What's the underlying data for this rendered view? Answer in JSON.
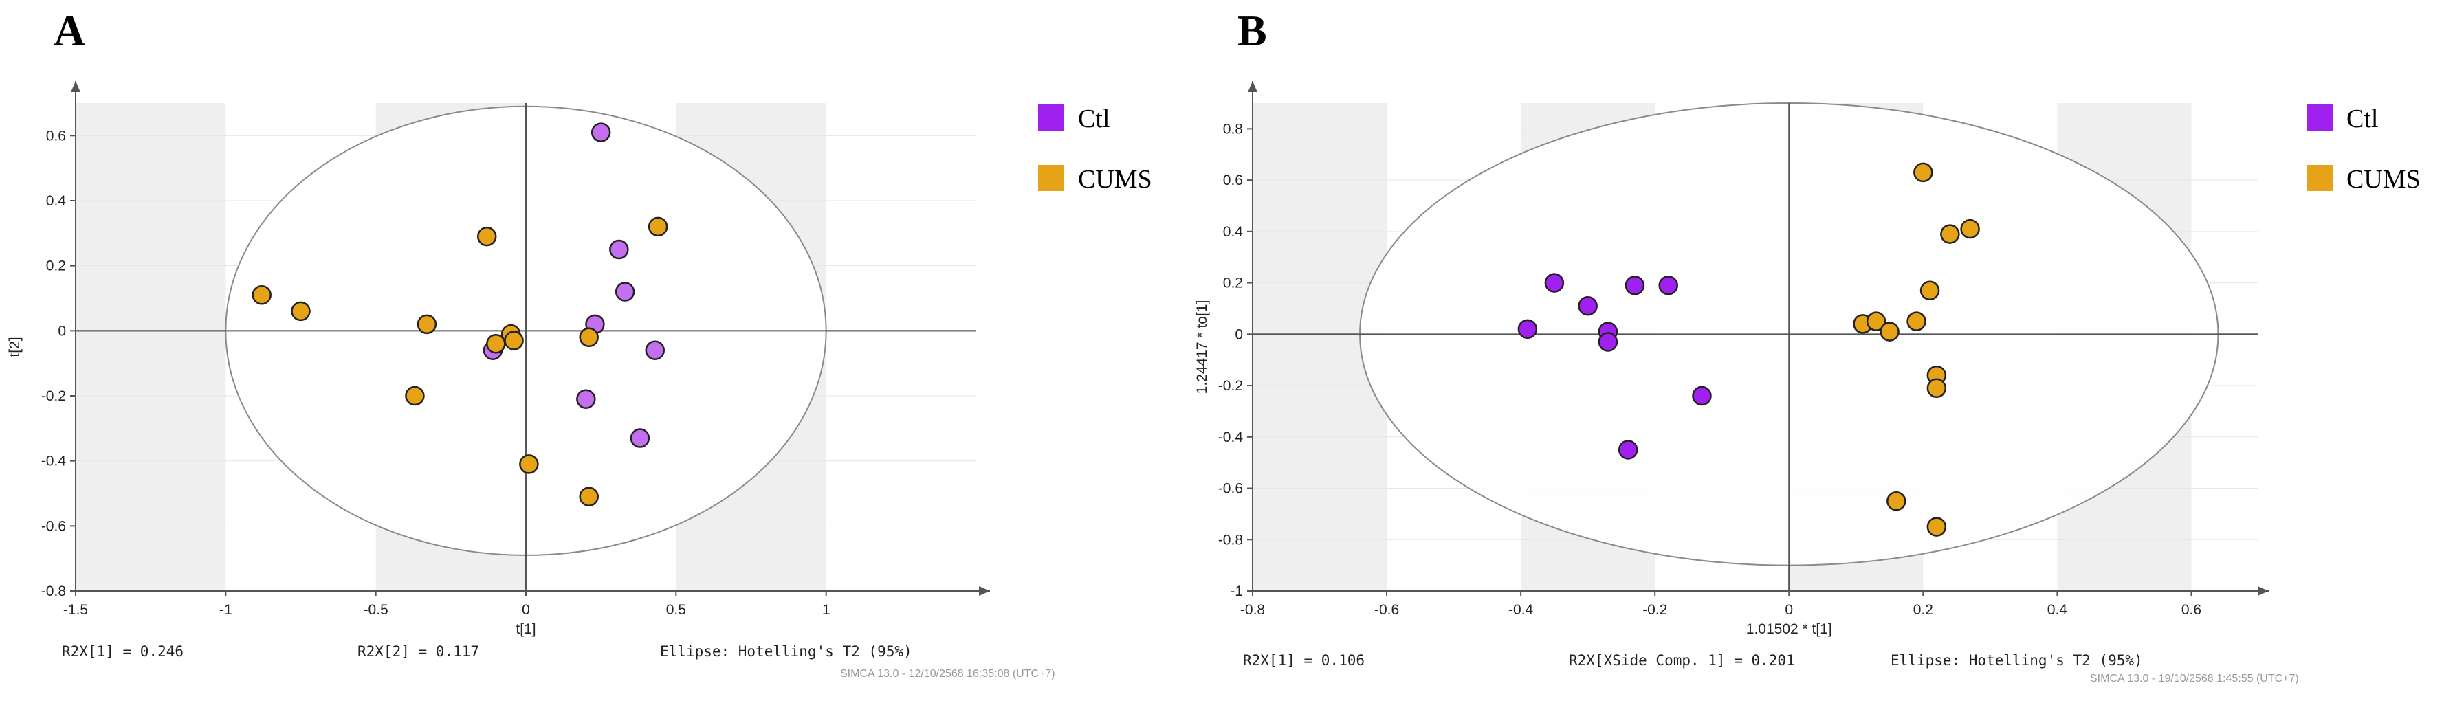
{
  "panels": [
    {
      "letter": "A"
    },
    {
      "letter": "B"
    }
  ],
  "colors": {
    "ctl": "#a020f0",
    "cums": "#e6a317",
    "ctl_light": "#c46ef0"
  },
  "chart_data": [
    {
      "type": "scatter",
      "title": "",
      "xlabel": "t[1]",
      "ylabel": "t[2]",
      "xlim": [
        -1.5,
        1.5
      ],
      "ylim": [
        -0.8,
        0.7
      ],
      "xticks": [
        -1.5,
        -1,
        -0.5,
        0,
        0.5,
        1
      ],
      "yticks": [
        -0.8,
        -0.6,
        -0.4,
        -0.2,
        0,
        0.2,
        0.4,
        0.6
      ],
      "grid": "vertical bands",
      "legend_position": "right",
      "ellipse": {
        "label": "Ellipse: Hotelling's T2 (95%)",
        "rx": 1.0,
        "ry": 0.69
      },
      "series": [
        {
          "name": "Ctl",
          "points": [
            [
              0.25,
              0.61
            ],
            [
              0.31,
              0.25
            ],
            [
              0.33,
              0.12
            ],
            [
              0.23,
              0.02
            ],
            [
              0.43,
              -0.06
            ],
            [
              0.2,
              -0.21
            ],
            [
              0.38,
              -0.33
            ],
            [
              -0.11,
              -0.06
            ]
          ]
        },
        {
          "name": "CUMS",
          "points": [
            [
              -0.88,
              0.11
            ],
            [
              -0.75,
              0.06
            ],
            [
              -0.13,
              0.29
            ],
            [
              -0.33,
              0.02
            ],
            [
              -0.05,
              -0.01
            ],
            [
              -0.04,
              -0.03
            ],
            [
              -0.1,
              -0.04
            ],
            [
              0.21,
              -0.02
            ],
            [
              0.44,
              0.32
            ],
            [
              -0.37,
              -0.2
            ],
            [
              0.01,
              -0.41
            ],
            [
              0.21,
              -0.51
            ]
          ]
        }
      ],
      "footer": {
        "r2x1": "R2X[1] = 0.246",
        "r2x2": "R2X[2] = 0.117",
        "ellipse": "Ellipse: Hotelling's T2 (95%)",
        "stamp": "SIMCA 13.0 - 12/10/2568 16:35:08 (UTC+7)"
      }
    },
    {
      "type": "scatter",
      "title": "",
      "xlabel": "1.01502 * t[1]",
      "ylabel": "1.24417 * to[1]",
      "xlim": [
        -0.8,
        0.7
      ],
      "ylim": [
        -1.0,
        0.9
      ],
      "xticks": [
        -0.8,
        -0.6,
        -0.4,
        -0.2,
        0,
        0.2,
        0.4,
        0.6
      ],
      "yticks": [
        -1,
        -0.8,
        -0.6,
        -0.4,
        -0.2,
        0,
        0.2,
        0.4,
        0.6,
        0.8
      ],
      "grid": "vertical bands",
      "legend_position": "right",
      "ellipse": {
        "label": "Ellipse: Hotelling's T2 (95%)",
        "rx": 0.64,
        "ry": 0.9
      },
      "series": [
        {
          "name": "Ctl",
          "points": [
            [
              -0.39,
              0.02
            ],
            [
              -0.35,
              0.2
            ],
            [
              -0.3,
              0.11
            ],
            [
              -0.27,
              0.01
            ],
            [
              -0.27,
              -0.03
            ],
            [
              -0.23,
              0.19
            ],
            [
              -0.18,
              0.19
            ],
            [
              -0.13,
              -0.24
            ],
            [
              -0.24,
              -0.45
            ]
          ]
        },
        {
          "name": "CUMS",
          "points": [
            [
              0.2,
              0.63
            ],
            [
              0.24,
              0.39
            ],
            [
              0.27,
              0.41
            ],
            [
              0.21,
              0.17
            ],
            [
              0.11,
              0.04
            ],
            [
              0.13,
              0.05
            ],
            [
              0.15,
              0.01
            ],
            [
              0.19,
              0.05
            ],
            [
              0.22,
              -0.16
            ],
            [
              0.22,
              -0.21
            ],
            [
              0.16,
              -0.65
            ],
            [
              0.22,
              -0.75
            ]
          ]
        }
      ],
      "footer": {
        "r2x1": "R2X[1] = 0.106",
        "r2x2": "R2X[XSide Comp. 1] = 0.201",
        "ellipse": "Ellipse: Hotelling's T2 (95%)",
        "stamp": "SIMCA 13.0 - 19/10/2568 1:45:55 (UTC+7)"
      }
    }
  ]
}
